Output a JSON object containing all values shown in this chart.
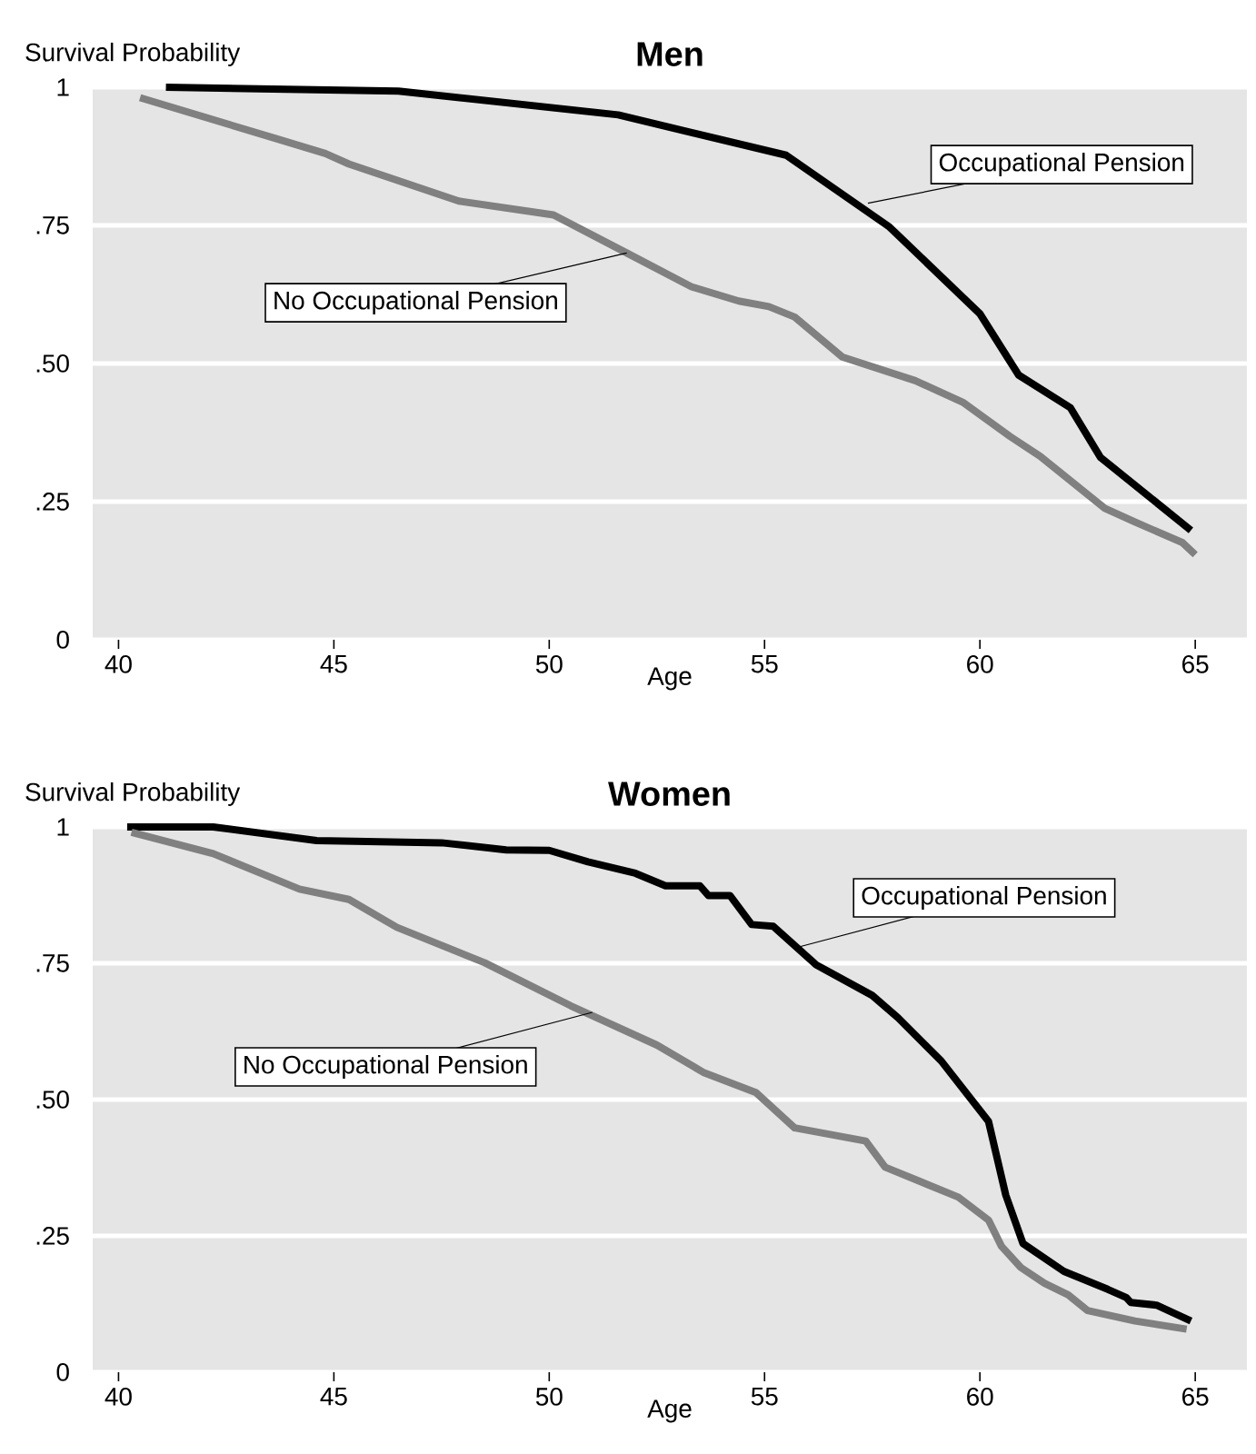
{
  "chart_data": [
    {
      "type": "line",
      "title": "Men",
      "ylabel": "Survival Probability",
      "xlabel": "Age",
      "xlim": [
        39.4,
        66.2
      ],
      "ylim": [
        0,
        1
      ],
      "xticks": [
        40,
        45,
        50,
        55,
        60,
        65
      ],
      "yticks": [
        0,
        {
          "value": 0.25,
          "label": ".25"
        },
        {
          "value": 0.5,
          "label": ".50"
        },
        {
          "value": 0.75,
          "label": ".75"
        },
        1
      ],
      "grid": "y",
      "series": [
        {
          "color": "#000000",
          "x": [
            41.1,
            46.5,
            51.6,
            55.5,
            57.9,
            60.0,
            60.9,
            62.1,
            62.8,
            64.9
          ],
          "values": [
            1.0,
            0.993,
            0.95,
            0.877,
            0.747,
            0.59,
            0.479,
            0.42,
            0.33,
            0.198
          ]
        },
        {
          "color": "#808080",
          "x": [
            40.5,
            43.7,
            44.8,
            45.35,
            47.9,
            50.1,
            51.8,
            53.3,
            54.4,
            55.1,
            55.7,
            56.8,
            58.5,
            59.6,
            60.7,
            61.4,
            62.9,
            63.6,
            64.7,
            65.0
          ],
          "values": [
            0.981,
            0.906,
            0.88,
            0.861,
            0.794,
            0.769,
            0.7,
            0.639,
            0.613,
            0.603,
            0.584,
            0.512,
            0.469,
            0.43,
            0.368,
            0.332,
            0.238,
            0.213,
            0.176,
            0.154
          ]
        }
      ],
      "annotations": [
        {
          "text": "Occupational Pension",
          "x": 57.4,
          "y": 0.79
        },
        {
          "text": "No Occupational Pension",
          "x": 51.8,
          "y": 0.7
        }
      ]
    },
    {
      "type": "line",
      "title": "Women",
      "ylabel": "Survival Probability",
      "xlabel": "Age",
      "xlim": [
        39.4,
        66.2
      ],
      "ylim": [
        0,
        1
      ],
      "xticks": [
        40,
        45,
        50,
        55,
        60,
        65
      ],
      "yticks": [
        0,
        {
          "value": 0.25,
          "label": ".25"
        },
        {
          "value": 0.5,
          "label": ".50"
        },
        {
          "value": 0.75,
          "label": ".75"
        },
        1
      ],
      "grid": "y",
      "series": [
        {
          "color": "#000000",
          "x": [
            40.2,
            42.2,
            44.6,
            47.5,
            49.0,
            50.0,
            50.9,
            52.0,
            52.7,
            53.5,
            53.7,
            54.2,
            54.7,
            55.2,
            56.2,
            57.5,
            58.1,
            59.1,
            60.2,
            60.6,
            61.0,
            61.95,
            62.97,
            63.4,
            63.5,
            64.1,
            64.9
          ],
          "values": [
            1.0,
            1.0,
            0.975,
            0.971,
            0.958,
            0.957,
            0.936,
            0.915,
            0.892,
            0.892,
            0.874,
            0.874,
            0.821,
            0.818,
            0.747,
            0.691,
            0.65,
            0.571,
            0.46,
            0.325,
            0.236,
            0.185,
            0.152,
            0.137,
            0.128,
            0.123,
            0.094
          ]
        },
        {
          "color": "#808080",
          "x": [
            40.3,
            42.2,
            44.2,
            45.35,
            46.46,
            48.5,
            50.5,
            52.5,
            53.6,
            54.8,
            55.7,
            57.35,
            57.8,
            59.5,
            60.2,
            60.5,
            60.95,
            61.5,
            62.05,
            62.5,
            63.6,
            64.8
          ],
          "values": [
            0.99,
            0.951,
            0.886,
            0.867,
            0.816,
            0.751,
            0.672,
            0.6,
            0.549,
            0.513,
            0.448,
            0.424,
            0.376,
            0.321,
            0.279,
            0.231,
            0.192,
            0.163,
            0.142,
            0.113,
            0.094,
            0.079
          ]
        }
      ],
      "annotations": [
        {
          "text": "Occupational Pension",
          "x": 55.8,
          "y": 0.78
        },
        {
          "text": "No Occupational Pension",
          "x": 51.0,
          "y": 0.66
        }
      ]
    }
  ]
}
